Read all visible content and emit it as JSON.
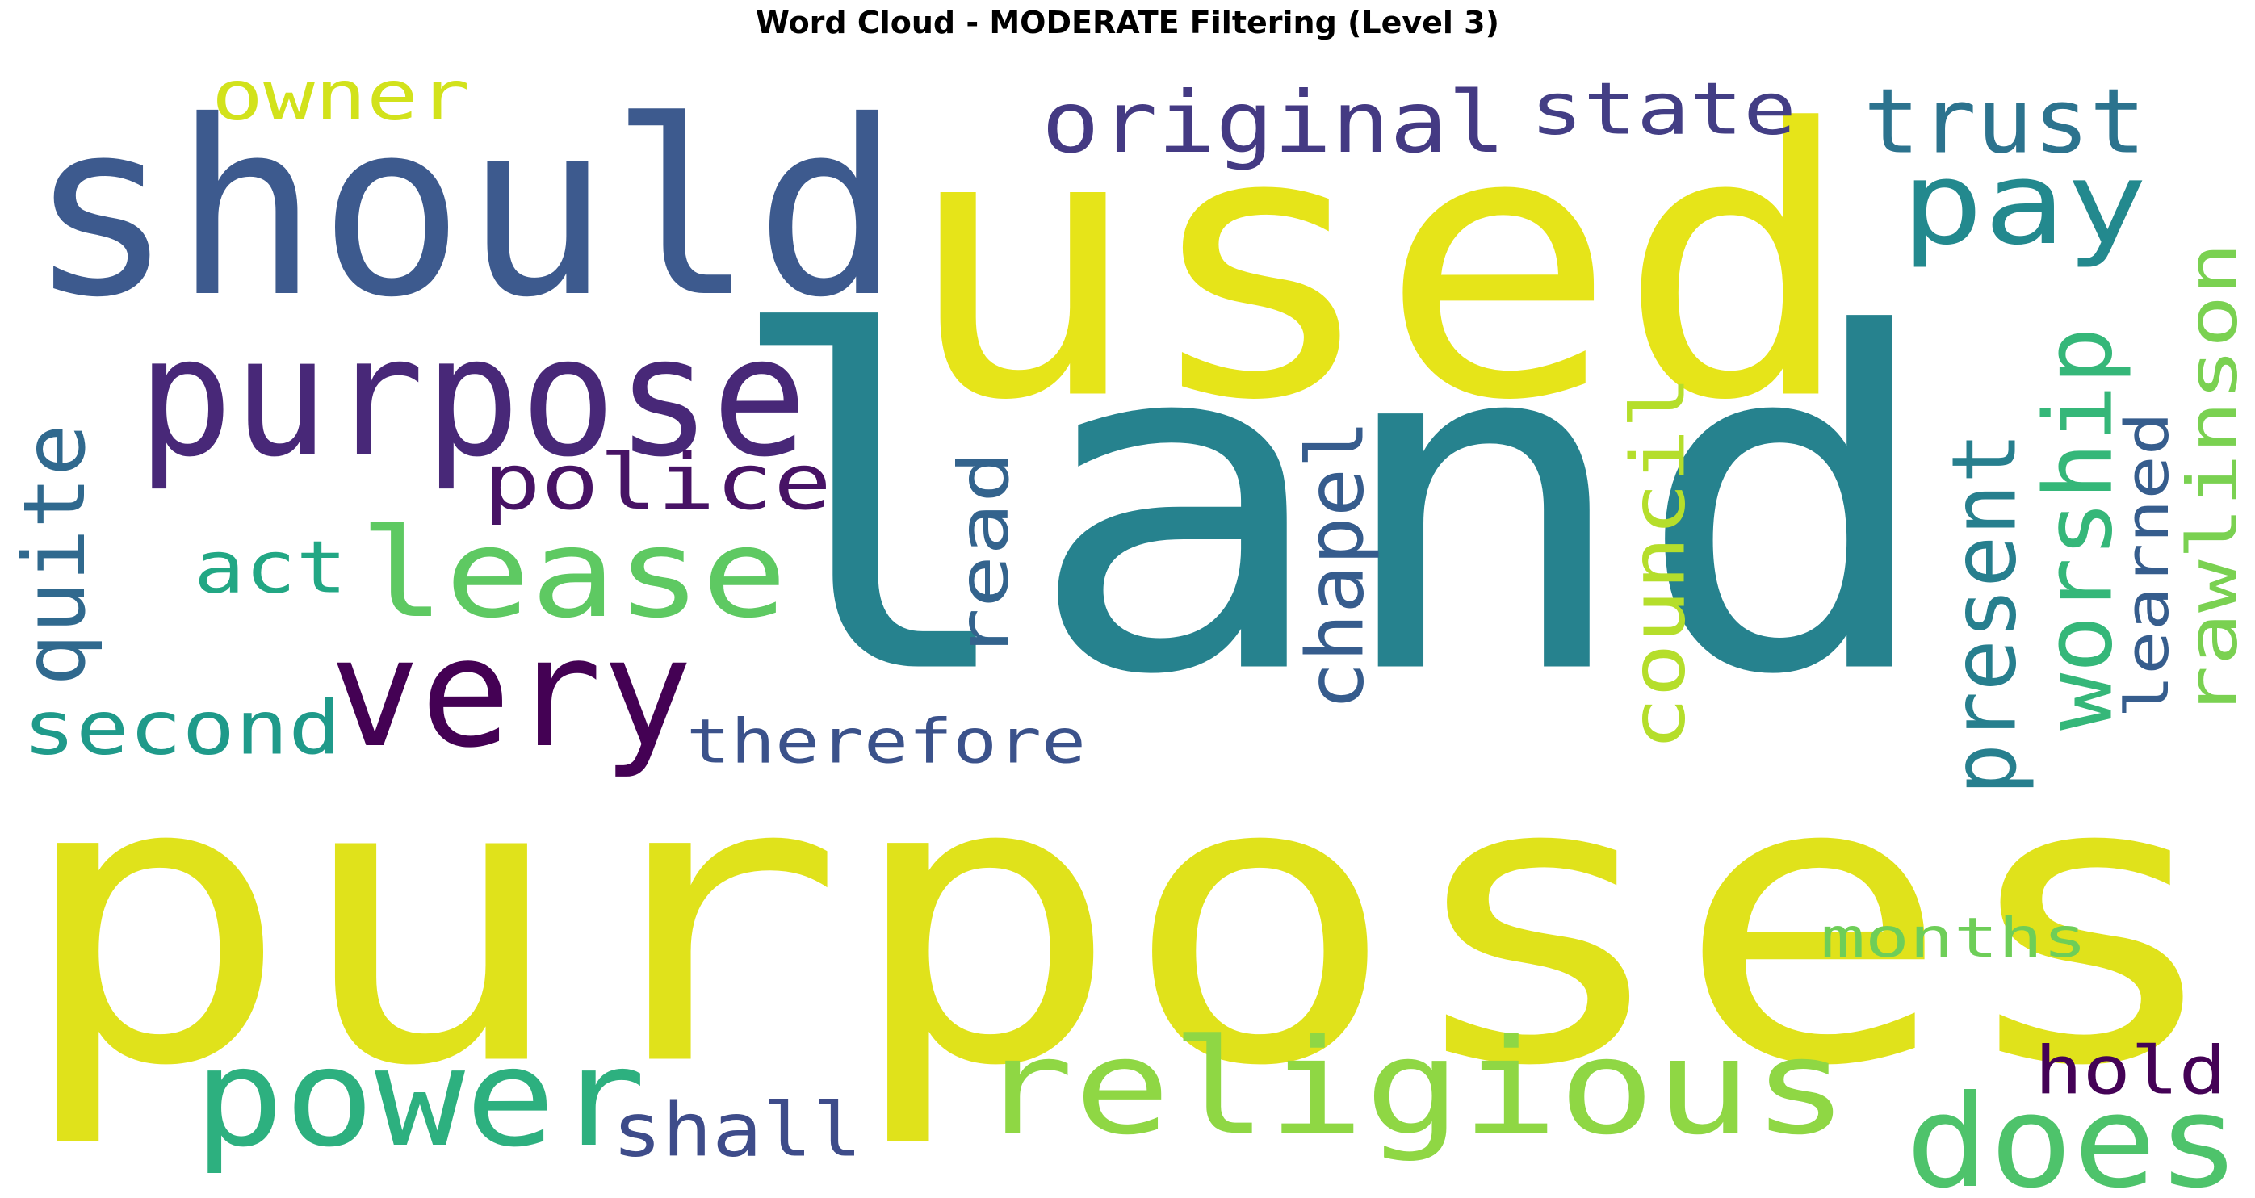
{
  "title": "Word Cloud - MODERATE Filtering (Level 3)",
  "words": [
    {
      "text": "land",
      "color": "#26828e",
      "orientation": "horizontal"
    },
    {
      "text": "purposes",
      "color": "#e0e21b",
      "orientation": "horizontal"
    },
    {
      "text": "used",
      "color": "#e6e419",
      "orientation": "horizontal"
    },
    {
      "text": "should",
      "color": "#3d5a8e",
      "orientation": "horizontal"
    },
    {
      "text": "purpose",
      "color": "#482878",
      "orientation": "horizontal"
    },
    {
      "text": "religious",
      "color": "#8fd744",
      "orientation": "horizontal"
    },
    {
      "text": "very",
      "color": "#440154",
      "orientation": "horizontal"
    },
    {
      "text": "power",
      "color": "#2db07f",
      "orientation": "horizontal"
    },
    {
      "text": "lease",
      "color": "#5ec962",
      "orientation": "horizontal"
    },
    {
      "text": "does",
      "color": "#4ec36b",
      "orientation": "horizontal"
    },
    {
      "text": "pay",
      "color": "#23898e",
      "orientation": "horizontal"
    },
    {
      "text": "original",
      "color": "#443a83",
      "orientation": "horizontal"
    },
    {
      "text": "trust",
      "color": "#2c738e",
      "orientation": "horizontal"
    },
    {
      "text": "state",
      "color": "#433e85",
      "orientation": "horizontal"
    },
    {
      "text": "police",
      "color": "#471365",
      "orientation": "horizontal"
    },
    {
      "text": "owner",
      "color": "#d2e21b",
      "orientation": "horizontal"
    },
    {
      "text": "second",
      "color": "#1f9a8a",
      "orientation": "horizontal"
    },
    {
      "text": "act",
      "color": "#22a784",
      "orientation": "horizontal"
    },
    {
      "text": "therefore",
      "color": "#3b528b",
      "orientation": "horizontal"
    },
    {
      "text": "shall",
      "color": "#3e4c8a",
      "orientation": "horizontal"
    },
    {
      "text": "hold",
      "color": "#440256",
      "orientation": "horizontal"
    },
    {
      "text": "months",
      "color": "#6ece58",
      "orientation": "horizontal"
    },
    {
      "text": "quite",
      "color": "#30698e",
      "orientation": "vertical"
    },
    {
      "text": "read",
      "color": "#33638d",
      "orientation": "vertical"
    },
    {
      "text": "chapel",
      "color": "#365c8d",
      "orientation": "vertical"
    },
    {
      "text": "council",
      "color": "#b5de2b",
      "orientation": "vertical"
    },
    {
      "text": "present",
      "color": "#277f8e",
      "orientation": "vertical"
    },
    {
      "text": "worship",
      "color": "#35b779",
      "orientation": "vertical"
    },
    {
      "text": "learned",
      "color": "#365d8d",
      "orientation": "vertical"
    },
    {
      "text": "rawlinson",
      "color": "#7ad151",
      "orientation": "vertical"
    }
  ]
}
